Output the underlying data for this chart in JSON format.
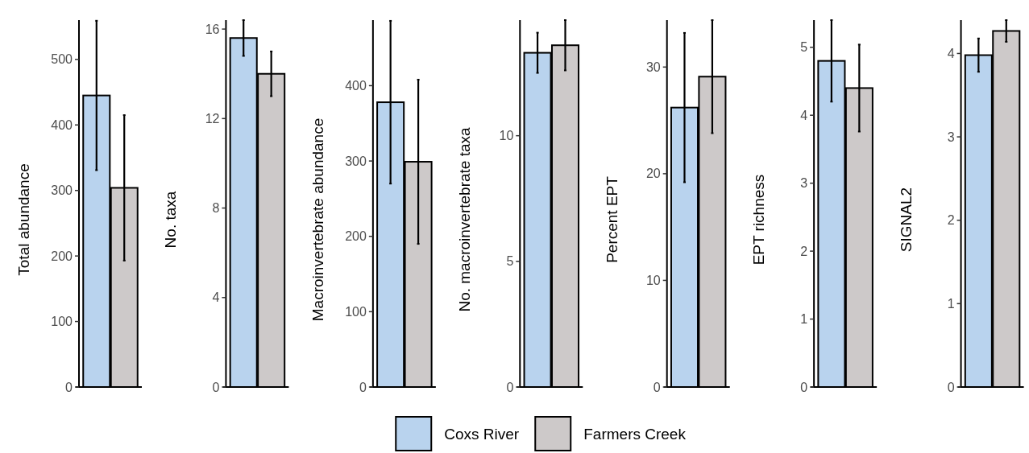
{
  "chart_data": [
    {
      "type": "bar",
      "ylabel": "Total abundance",
      "categories": [
        null
      ],
      "ylim": [
        0,
        560
      ],
      "yticks": [
        0,
        100,
        200,
        300,
        400,
        500
      ],
      "legend": "bottom",
      "series": [
        {
          "name": "Coxs River",
          "color": "#b9d3ee",
          "values": [
            445
          ],
          "errors": [
            114
          ]
        },
        {
          "name": "Farmers Creek",
          "color": "#cdc9c9",
          "values": [
            304
          ],
          "errors": [
            111
          ]
        }
      ]
    },
    {
      "type": "bar",
      "ylabel": "No. taxa",
      "categories": [
        null
      ],
      "ylim": [
        0,
        16.4
      ],
      "yticks": [
        0,
        4,
        8,
        12,
        16
      ],
      "series": [
        {
          "color": "#b9d3ee",
          "values": [
            15.6
          ],
          "errors": [
            0.8
          ]
        },
        {
          "color": "#cdc9c9",
          "values": [
            14.0
          ],
          "errors": [
            1.0
          ]
        }
      ]
    },
    {
      "type": "bar",
      "ylabel": "Macroinvertebrate abundance",
      "categories": [
        null
      ],
      "ylim": [
        0,
        487
      ],
      "yticks": [
        0,
        100,
        200,
        300,
        400
      ],
      "series": [
        {
          "color": "#b9d3ee",
          "values": [
            378
          ],
          "errors": [
            108
          ]
        },
        {
          "color": "#cdc9c9",
          "values": [
            299
          ],
          "errors": [
            109
          ]
        }
      ]
    },
    {
      "type": "bar",
      "ylabel": "No. macroinvertebrate taxa",
      "categories": [
        null
      ],
      "ylim": [
        0,
        14.6
      ],
      "yticks": [
        0,
        5,
        10
      ],
      "series": [
        {
          "color": "#b9d3ee",
          "values": [
            13.3
          ],
          "errors": [
            0.8
          ]
        },
        {
          "color": "#cdc9c9",
          "values": [
            13.6
          ],
          "errors": [
            1.0
          ]
        }
      ]
    },
    {
      "type": "bar",
      "ylabel": "Percent EPT",
      "categories": [
        null
      ],
      "ylim": [
        0,
        34.4
      ],
      "yticks": [
        0,
        10,
        20,
        30
      ],
      "series": [
        {
          "color": "#b9d3ee",
          "values": [
            26.2
          ],
          "errors": [
            7.0
          ]
        },
        {
          "color": "#cdc9c9",
          "values": [
            29.1
          ],
          "errors": [
            5.3
          ]
        }
      ]
    },
    {
      "type": "bar",
      "ylabel": "EPT richness",
      "categories": [
        null
      ],
      "ylim": [
        0,
        5.4
      ],
      "yticks": [
        0,
        1,
        2,
        3,
        4,
        5
      ],
      "series": [
        {
          "color": "#b9d3ee",
          "values": [
            4.8
          ],
          "errors": [
            0.6
          ]
        },
        {
          "color": "#cdc9c9",
          "values": [
            4.4
          ],
          "errors": [
            0.64
          ]
        }
      ]
    },
    {
      "type": "bar",
      "ylabel": "SIGNAL2",
      "categories": [
        null
      ],
      "ylim": [
        0,
        4.4
      ],
      "yticks": [
        0,
        1,
        2,
        3,
        4
      ],
      "series": [
        {
          "color": "#b9d3ee",
          "values": [
            3.98
          ],
          "errors": [
            0.2
          ]
        },
        {
          "color": "#cdc9c9",
          "values": [
            4.27
          ],
          "errors": [
            0.13
          ]
        }
      ]
    }
  ]
}
